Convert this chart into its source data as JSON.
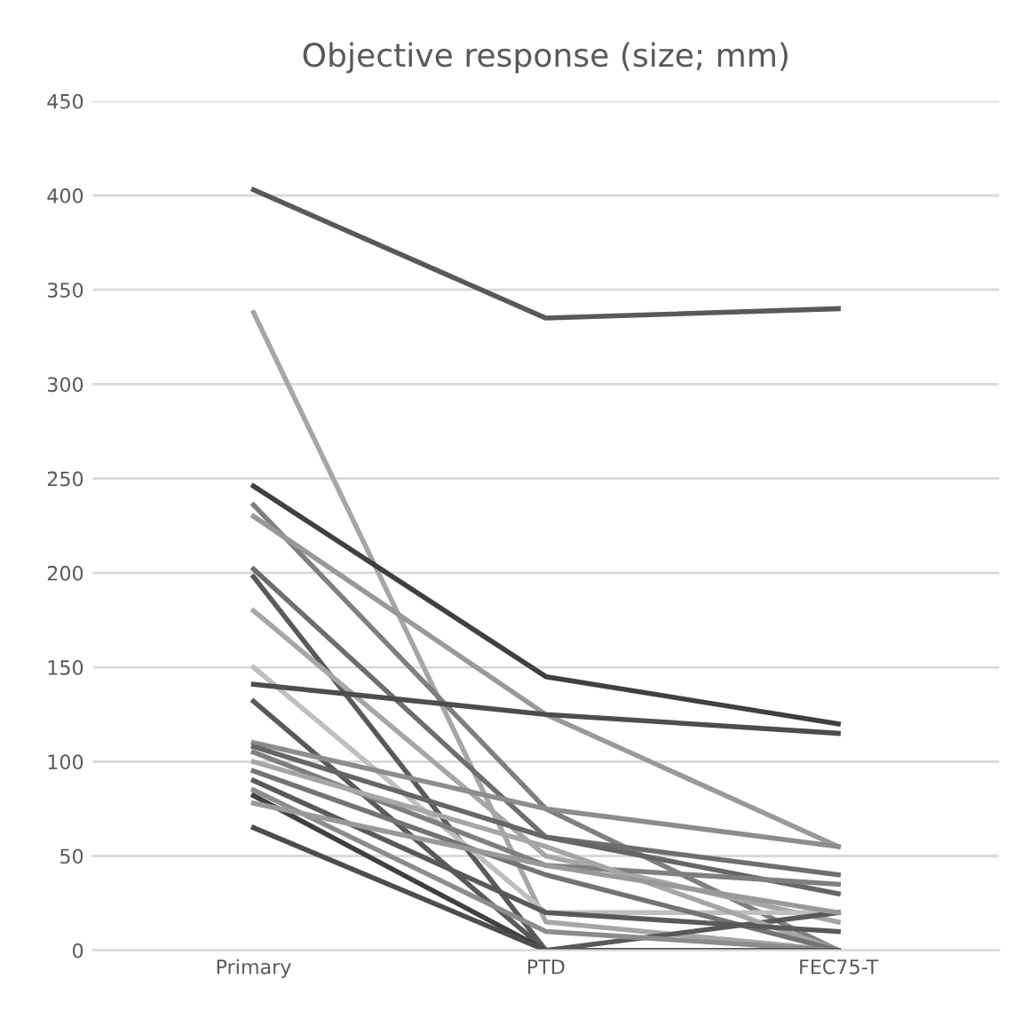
{
  "chart_data": {
    "type": "line",
    "title": "Objective response (size; mm)",
    "categories": [
      "Primary",
      "PTD",
      "FEC75-T"
    ],
    "ylim": [
      0,
      450
    ],
    "yticks": [
      0,
      50,
      100,
      150,
      200,
      250,
      300,
      350,
      400,
      450
    ],
    "grid": "y",
    "marker": "none",
    "line_style": "solid",
    "series": [
      {
        "color": "#595959",
        "values": [
          403,
          335,
          340
        ]
      },
      {
        "color": "#a6a6a6",
        "values": [
          338,
          15,
          0
        ]
      },
      {
        "color": "#404040",
        "values": [
          246,
          145,
          120
        ]
      },
      {
        "color": "#7f7f7f",
        "values": [
          236,
          75,
          0
        ]
      },
      {
        "color": "#999999",
        "values": [
          230,
          125,
          55
        ]
      },
      {
        "color": "#6e6e6e",
        "values": [
          202,
          60,
          40
        ]
      },
      {
        "color": "#595959",
        "values": [
          198,
          0,
          0
        ]
      },
      {
        "color": "#a6a6a6",
        "values": [
          180,
          50,
          15
        ]
      },
      {
        "color": "#bfbfbf",
        "values": [
          150,
          20,
          20
        ]
      },
      {
        "color": "#4d4d4d",
        "values": [
          141,
          125,
          115
        ]
      },
      {
        "color": "#595959",
        "values": [
          132,
          0,
          20
        ]
      },
      {
        "color": "#8c8c8c",
        "values": [
          110,
          75,
          55
        ]
      },
      {
        "color": "#666666",
        "values": [
          108,
          60,
          30
        ]
      },
      {
        "color": "#7f7f7f",
        "values": [
          105,
          45,
          35
        ]
      },
      {
        "color": "#a6a6a6",
        "values": [
          100,
          55,
          0
        ]
      },
      {
        "color": "#737373",
        "values": [
          95,
          40,
          0
        ]
      },
      {
        "color": "#595959",
        "values": [
          90,
          20,
          10
        ]
      },
      {
        "color": "#8c8c8c",
        "values": [
          85,
          10,
          0
        ]
      },
      {
        "color": "#404040",
        "values": [
          82,
          0,
          0
        ]
      },
      {
        "color": "#999999",
        "values": [
          78,
          45,
          20
        ]
      },
      {
        "color": "#4d4d4d",
        "values": [
          65,
          0,
          0
        ]
      }
    ]
  }
}
